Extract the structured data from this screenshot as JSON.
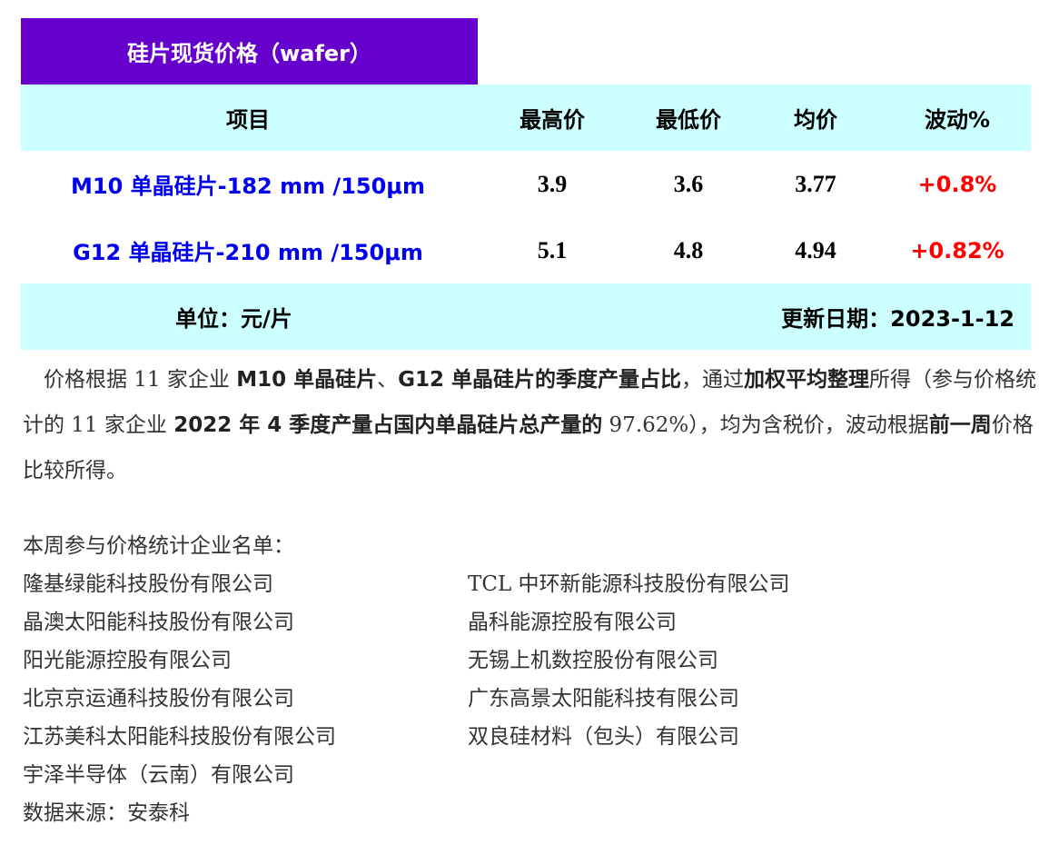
{
  "title": "硅片现货价格（wafer）",
  "table": {
    "headers": [
      "项目",
      "最高价",
      "最低价",
      "均价",
      "波动%"
    ],
    "rows": [
      {
        "item": "M10 单晶硅片-182 mm /150μm",
        "high": "3.9",
        "low": "3.6",
        "avg": "3.77",
        "change": "+0.8%"
      },
      {
        "item": "G12 单晶硅片-210 mm /150μm",
        "high": "5.1",
        "low": "4.8",
        "avg": "4.94",
        "change": "+0.82%"
      }
    ],
    "unit": "单位：元/片",
    "update_date": "更新日期：2023-1-12"
  },
  "paragraph": [
    {
      "t": "　价格根据 11 家企业 ",
      "b": false
    },
    {
      "t": "M10 单晶硅片",
      "b": true
    },
    {
      "t": "、",
      "b": false
    },
    {
      "t": "G12 单晶硅片的季度产量占比",
      "b": true
    },
    {
      "t": "，通过",
      "b": false
    },
    {
      "t": "加权平均整理",
      "b": true
    },
    {
      "t": "所得（参与价格统计的 11 家企业 ",
      "b": false
    },
    {
      "t": "2022 年 4 季度产量占国内单晶硅片总产量的",
      "b": true
    },
    {
      "t": " 97.62%），均为含税价，波动根据",
      "b": false
    },
    {
      "t": "前一周",
      "b": true
    },
    {
      "t": "价格比较所得。",
      "b": false
    }
  ],
  "companies_title": "本周参与价格统计企业名单：",
  "companies_left": [
    "隆基绿能科技股份有限公司",
    "晶澳太阳能科技股份有限公司",
    "阳光能源控股有限公司",
    "北京京运通科技股份有限公司",
    "江苏美科太阳能科技股份有限公司",
    "宇泽半导体（云南）有限公司"
  ],
  "companies_right": [
    "TCL 中环新能源科技股份有限公司",
    "晶科能源控股有限公司",
    "无锡上机数控股份有限公司",
    "广东高景太阳能科技有限公司",
    "双良硅材料（包头）有限公司"
  ],
  "source": "数据来源：安泰科",
  "colors": {
    "title_bg": "#6600cc",
    "header_bg": "#ccffff",
    "item": "#0000ee",
    "change": "#ff0000"
  }
}
